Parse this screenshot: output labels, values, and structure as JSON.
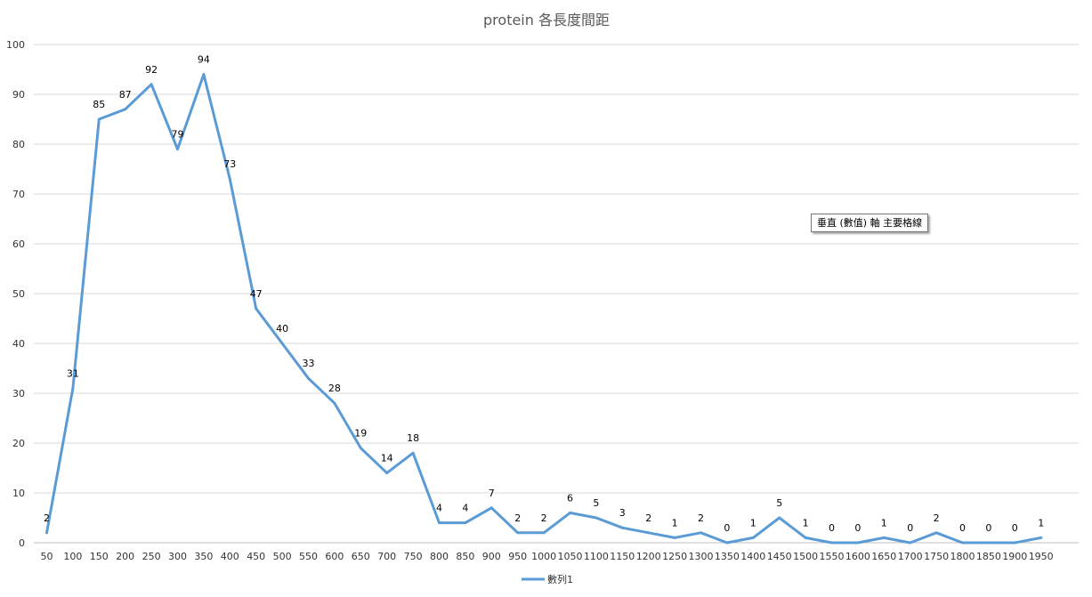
{
  "chart_data": {
    "type": "line",
    "title": "protein 各長度間距",
    "xlabel": "",
    "ylabel": "",
    "ylim": [
      0,
      100
    ],
    "yticks": [
      0,
      10,
      20,
      30,
      40,
      50,
      60,
      70,
      80,
      90,
      100
    ],
    "categories": [
      "50",
      "100",
      "150",
      "200",
      "250",
      "300",
      "350",
      "400",
      "450",
      "500",
      "550",
      "600",
      "650",
      "700",
      "750",
      "800",
      "850",
      "900",
      "950",
      "1000",
      "1050",
      "1100",
      "1150",
      "1200",
      "1250",
      "1300",
      "1350",
      "1400",
      "1450",
      "1500",
      "1550",
      "1600",
      "1650",
      "1700",
      "1750",
      "1800",
      "1850",
      "1900",
      "1950"
    ],
    "series": [
      {
        "name": "數列1",
        "color": "#5b9bd5",
        "values": [
          2,
          31,
          85,
          87,
          92,
          79,
          94,
          73,
          47,
          40,
          33,
          28,
          19,
          14,
          18,
          4,
          4,
          7,
          2,
          2,
          6,
          5,
          3,
          2,
          1,
          2,
          0,
          1,
          5,
          1,
          0,
          0,
          1,
          0,
          2,
          0,
          0,
          0,
          1
        ],
        "labels": [
          "2",
          "31",
          "85",
          "87",
          "92",
          "79",
          "94",
          "73",
          "47",
          "40",
          "33",
          "28",
          "19",
          "14",
          "18",
          "4",
          "4",
          "7",
          "2",
          "2",
          "6",
          "5",
          "3",
          "2",
          "1",
          "2",
          "0",
          "1",
          "5",
          "1",
          "0",
          "0",
          "1",
          "0",
          "2",
          "0",
          "0",
          "0",
          "1"
        ]
      }
    ],
    "grid": true,
    "legend": "bottom"
  },
  "tooltip": {
    "text": "垂直 (數值) 軸 主要格線"
  },
  "colors": {
    "gridline": "#d9d9d9",
    "axis": "#bfbfbf"
  }
}
